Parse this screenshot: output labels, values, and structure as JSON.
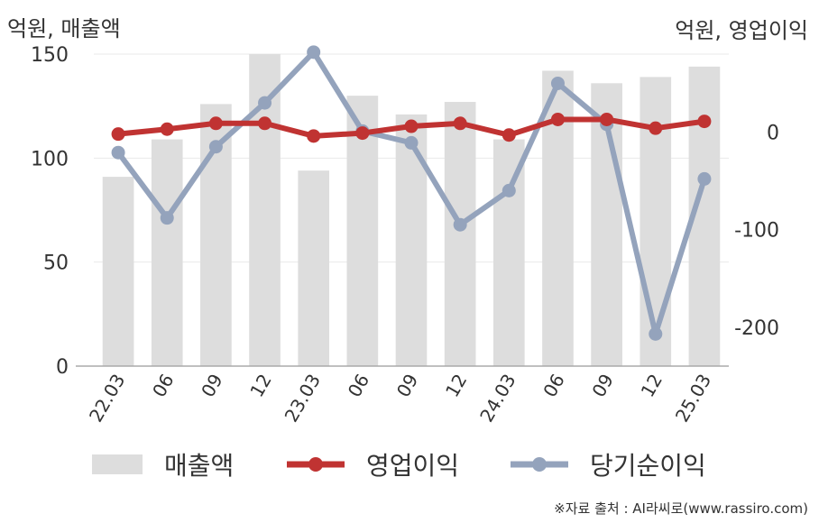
{
  "header": {
    "left_unit": "억원, 매출액",
    "right_unit": "억원, 영업이익"
  },
  "chart_data": {
    "type": "bar",
    "categories": [
      "22.03",
      "06",
      "09",
      "12",
      "23.03",
      "06",
      "09",
      "12",
      "24.03",
      "06",
      "09",
      "12",
      "25.03"
    ],
    "left_axis": {
      "ylim": [
        0,
        150
      ],
      "ticks": [
        0,
        50,
        100,
        150
      ]
    },
    "right_axis": {
      "ylim": [
        -240,
        80
      ],
      "ticks": [
        0,
        -100,
        -200
      ]
    },
    "grid": true,
    "legend_position": "bottom",
    "series": [
      {
        "name": "매출액",
        "type": "bar",
        "axis": "left",
        "color": "#dddddd",
        "values": [
          91,
          109,
          126,
          150,
          94,
          130,
          121,
          127,
          109,
          142,
          136,
          139,
          144
        ]
      },
      {
        "name": "영업이익",
        "type": "line",
        "axis": "right",
        "color": "#c03332",
        "values": [
          -2,
          3,
          9,
          9,
          -4,
          -1,
          6,
          9,
          -3,
          13,
          13,
          4,
          11
        ]
      },
      {
        "name": "당기순이익",
        "type": "line",
        "axis": "right",
        "color": "#94a3bc",
        "values": [
          -21,
          -88,
          -15,
          30,
          82,
          1,
          -11,
          -95,
          -60,
          50,
          8,
          -207,
          -48
        ]
      }
    ]
  },
  "source": "※자료 출처 : AI라씨로(www.rassiro.com)"
}
